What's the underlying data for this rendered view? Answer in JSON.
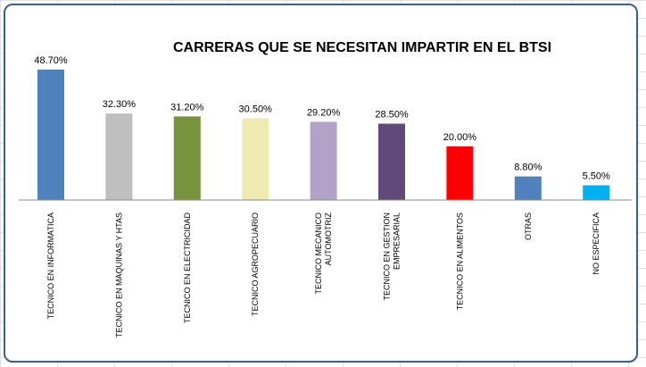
{
  "chart_data": {
    "type": "bar",
    "title": "CARRERAS QUE  SE NECESITAN IMPARTIR EN EL BTSI",
    "xlabel": "",
    "ylabel": "",
    "ylim": [
      0,
      52
    ],
    "grid": false,
    "legend": "none",
    "categories": [
      [
        "TECNICO EN INFORMATICA"
      ],
      [
        "TECNICO EN MAQUINAS Y HTAS"
      ],
      [
        "TECNICO EN ELECTRICIDAD"
      ],
      [
        "TECNICO AGROPECUARIO"
      ],
      [
        "TECNICO MECANICO",
        "AUTOMOTRIZ"
      ],
      [
        "TECNICO EN GESTION",
        "EMPRESARIAL"
      ],
      [
        "TECNICO EN ALIMENTOS"
      ],
      [
        "OTRAS"
      ],
      [
        "NO ESPECIFICA"
      ]
    ],
    "values": [
      48.7,
      32.3,
      31.2,
      30.5,
      29.2,
      28.5,
      20.0,
      8.8,
      5.5
    ],
    "value_labels": [
      "48.70%",
      "32.30%",
      "31.20%",
      "30.50%",
      "29.20%",
      "28.50%",
      "20.00%",
      "8.80%",
      "5.50%"
    ],
    "colors": [
      "#4f81bd",
      "#bfbfbf",
      "#77933c",
      "#eeeab0",
      "#b3a2c7",
      "#604a7b",
      "#ff0000",
      "#4f81bd",
      "#00b0f0"
    ]
  }
}
